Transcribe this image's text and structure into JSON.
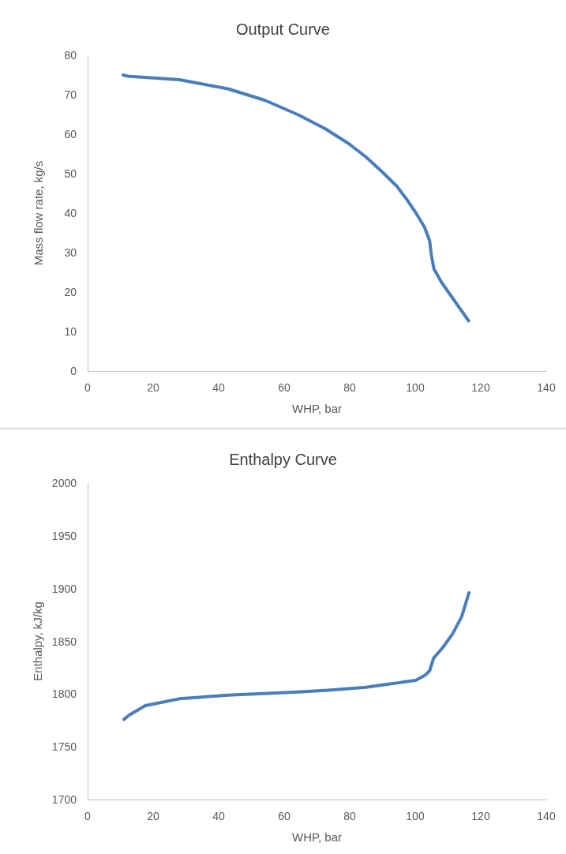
{
  "chart_data": [
    {
      "type": "line",
      "title": "Output Curve",
      "xlabel": "WHP, bar",
      "ylabel": "Mass flow rate, kg/s",
      "xlim": [
        0,
        140
      ],
      "xticks": [
        0,
        20,
        40,
        60,
        80,
        100,
        120,
        140
      ],
      "ylim": [
        0,
        80
      ],
      "yticks": [
        0,
        10,
        20,
        30,
        40,
        50,
        60,
        70,
        80
      ],
      "marker": "none",
      "series": [
        {
          "color": "#4a7ebb",
          "x": [
            10.8,
            12.2,
            28.0,
            42.8,
            54.1,
            64.3,
            72.7,
            79.7,
            85.0,
            90.1,
            94.4,
            97.3,
            100.1,
            102.8,
            104.4,
            104.9,
            105.7,
            108.0,
            116.3
          ],
          "values": [
            75.0,
            74.7,
            73.8,
            71.5,
            68.6,
            64.9,
            61.3,
            57.6,
            54.2,
            50.3,
            46.8,
            43.6,
            40.2,
            36.5,
            33.0,
            29.5,
            25.9,
            22.5,
            12.7
          ]
        }
      ]
    },
    {
      "type": "line",
      "title": "Enthalpy Curve",
      "xlabel": "WHP, bar",
      "ylabel": "Enthalpy, kJ/kg",
      "xlim": [
        0,
        140
      ],
      "xticks": [
        0,
        20,
        40,
        60,
        80,
        100,
        120,
        140
      ],
      "ylim": [
        1700,
        2000
      ],
      "yticks": [
        1700,
        1750,
        1800,
        1850,
        1900,
        1950,
        2000
      ],
      "marker": "none",
      "series": [
        {
          "color": "#4a7ebb",
          "x": [
            11.1,
            12.7,
            17.6,
            28.0,
            42.8,
            64.1,
            73.4,
            85.0,
            90.1,
            95.6,
            100.1,
            102.9,
            104.4,
            105.6,
            108.4,
            111.4,
            114.2,
            116.4
          ],
          "values": [
            1776,
            1780,
            1789,
            1795.5,
            1799,
            1802,
            1803.6,
            1806.4,
            1808.7,
            1811,
            1813,
            1817.7,
            1822,
            1834,
            1844,
            1857,
            1873.5,
            1896
          ]
        }
      ]
    }
  ]
}
